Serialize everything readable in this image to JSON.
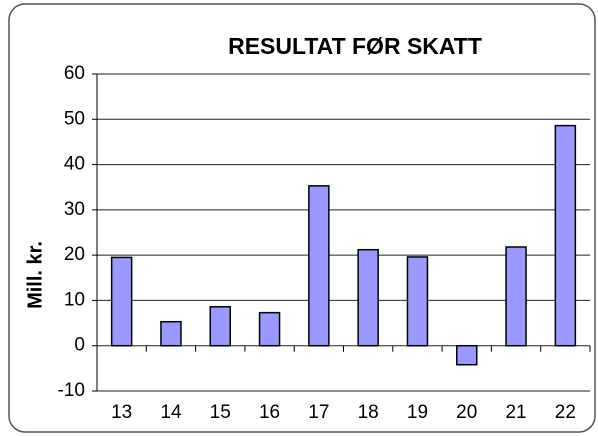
{
  "chart_data": {
    "type": "bar",
    "title": "RESULTAT FØR SKATT",
    "y_label": "Mill. kr.",
    "categories": [
      "13",
      "14",
      "15",
      "16",
      "17",
      "18",
      "19",
      "20",
      "21",
      "22"
    ],
    "values": [
      19.5,
      5.3,
      8.6,
      7.3,
      35.3,
      21.2,
      19.6,
      -4.2,
      21.8,
      48.6
    ],
    "color": "#9999ff",
    "ylim": [
      -10,
      60
    ],
    "yticks": [
      -10,
      0,
      10,
      20,
      30,
      40,
      50,
      60
    ],
    "grid": true
  }
}
